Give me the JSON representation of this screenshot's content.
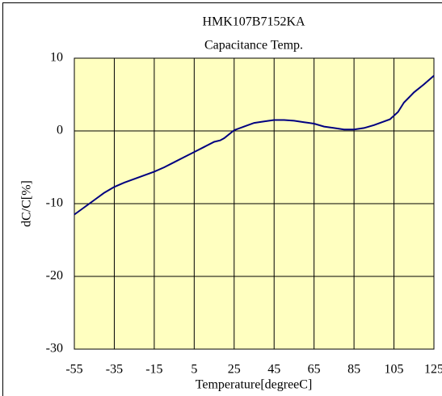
{
  "chart_data": {
    "type": "line",
    "title": "HMK107B7152KA",
    "subtitle": "Capacitance Temp.",
    "x_label": "Temperature[degreeC]",
    "y_label": "dC/C[%]",
    "x": [
      -55,
      -50,
      -45,
      -40,
      -35,
      -30,
      -25,
      -20,
      -15,
      -10,
      -5,
      0,
      5,
      10,
      15,
      18,
      20,
      25,
      30,
      35,
      40,
      45,
      50,
      55,
      60,
      65,
      70,
      75,
      80,
      85,
      90,
      95,
      100,
      103,
      107,
      110,
      115,
      120,
      125
    ],
    "series": [
      {
        "color": "#000080",
        "values": [
          -11.5,
          -10.5,
          -9.5,
          -8.5,
          -7.7,
          -7.1,
          -6.6,
          -6.1,
          -5.6,
          -5.0,
          -4.3,
          -3.6,
          -2.9,
          -2.2,
          -1.5,
          -1.3,
          -1.0,
          0.1,
          0.6,
          1.1,
          1.3,
          1.5,
          1.5,
          1.4,
          1.2,
          1.0,
          0.6,
          0.4,
          0.2,
          0.2,
          0.4,
          0.8,
          1.3,
          1.6,
          2.6,
          3.9,
          5.3,
          6.4,
          7.6
        ]
      }
    ],
    "xlim": [
      -55,
      125
    ],
    "xticks": [
      -55,
      -35,
      -15,
      5,
      25,
      45,
      65,
      85,
      105,
      125
    ],
    "ylim": [
      -30,
      10
    ],
    "yticks": [
      10,
      0,
      -10,
      -20,
      -30
    ],
    "grid": true,
    "plot_background": "#ffffc0"
  }
}
